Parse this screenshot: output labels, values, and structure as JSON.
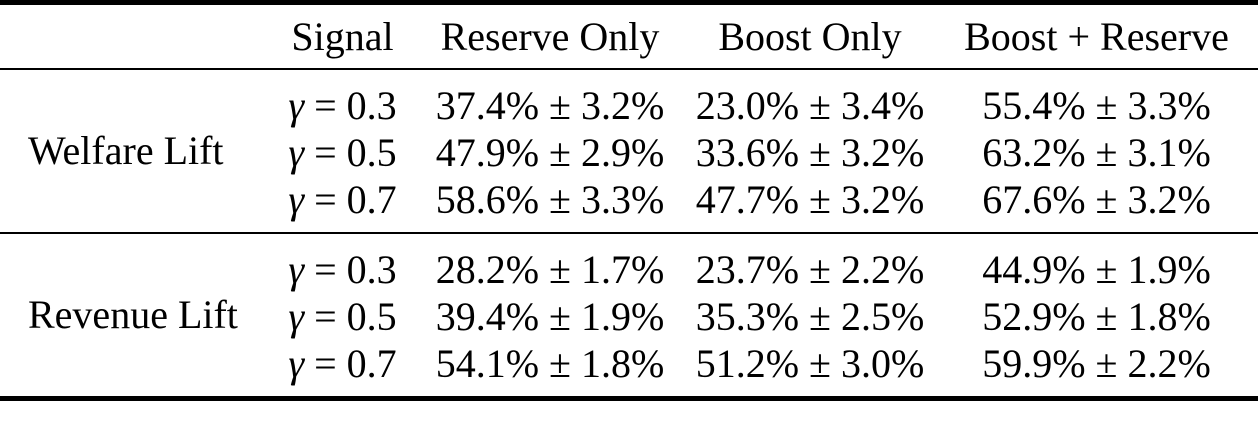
{
  "page": {
    "background_color": "#ffffff",
    "text_color": "#000000",
    "rule_color": "#000000"
  },
  "table": {
    "header": {
      "row_label": "",
      "signal": "Signal",
      "reserve_only": "Reserve Only",
      "boost_only": "Boost Only",
      "boost_reserve": "Boost + Reserve"
    },
    "groups": [
      {
        "label": "Welfare Lift",
        "rows": [
          {
            "signal_symbol": "γ",
            "signal_rest": "= 0.3",
            "reserve_only": "37.4% ± 3.2%",
            "boost_only": "23.0% ± 3.4%",
            "boost_reserve": "55.4% ± 3.3%"
          },
          {
            "signal_symbol": "γ",
            "signal_rest": "= 0.5",
            "reserve_only": "47.9% ± 2.9%",
            "boost_only": "33.6% ± 3.2%",
            "boost_reserve": "63.2% ± 3.1%"
          },
          {
            "signal_symbol": "γ",
            "signal_rest": "= 0.7",
            "reserve_only": "58.6% ± 3.3%",
            "boost_only": "47.7% ± 3.2%",
            "boost_reserve": "67.6% ± 3.2%"
          }
        ]
      },
      {
        "label": "Revenue Lift",
        "rows": [
          {
            "signal_symbol": "γ",
            "signal_rest": "= 0.3",
            "reserve_only": "28.2% ± 1.7%",
            "boost_only": "23.7% ± 2.2%",
            "boost_reserve": "44.9% ± 1.9%"
          },
          {
            "signal_symbol": "γ",
            "signal_rest": "= 0.5",
            "reserve_only": "39.4% ± 1.9%",
            "boost_only": "35.3% ± 2.5%",
            "boost_reserve": "52.9% ± 1.8%"
          },
          {
            "signal_symbol": "γ",
            "signal_rest": "= 0.7",
            "reserve_only": "54.1% ± 1.8%",
            "boost_only": "51.2% ± 3.0%",
            "boost_reserve": "59.9% ± 2.2%"
          }
        ]
      }
    ]
  },
  "chart_data": {
    "type": "table",
    "columns": [
      "",
      "Signal",
      "Reserve Only",
      "Boost Only",
      "Boost + Reserve"
    ],
    "row_groups": [
      {
        "label": "Welfare Lift",
        "rows": [
          {
            "gamma": 0.3,
            "reserve_only_pct": 37.4,
            "reserve_only_err": 3.2,
            "boost_only_pct": 23.0,
            "boost_only_err": 3.4,
            "boost_reserve_pct": 55.4,
            "boost_reserve_err": 3.3
          },
          {
            "gamma": 0.5,
            "reserve_only_pct": 47.9,
            "reserve_only_err": 2.9,
            "boost_only_pct": 33.6,
            "boost_only_err": 3.2,
            "boost_reserve_pct": 63.2,
            "boost_reserve_err": 3.1
          },
          {
            "gamma": 0.7,
            "reserve_only_pct": 58.6,
            "reserve_only_err": 3.3,
            "boost_only_pct": 47.7,
            "boost_only_err": 3.2,
            "boost_reserve_pct": 67.6,
            "boost_reserve_err": 3.2
          }
        ]
      },
      {
        "label": "Revenue Lift",
        "rows": [
          {
            "gamma": 0.3,
            "reserve_only_pct": 28.2,
            "reserve_only_err": 1.7,
            "boost_only_pct": 23.7,
            "boost_only_err": 2.2,
            "boost_reserve_pct": 44.9,
            "boost_reserve_err": 1.9
          },
          {
            "gamma": 0.5,
            "reserve_only_pct": 39.4,
            "reserve_only_err": 1.9,
            "boost_only_pct": 35.3,
            "boost_only_err": 2.5,
            "boost_reserve_pct": 52.9,
            "boost_reserve_err": 1.8
          },
          {
            "gamma": 0.7,
            "reserve_only_pct": 54.1,
            "reserve_only_err": 1.8,
            "boost_only_pct": 51.2,
            "boost_only_err": 3.0,
            "boost_reserve_pct": 59.9,
            "boost_reserve_err": 2.2
          }
        ]
      }
    ]
  }
}
